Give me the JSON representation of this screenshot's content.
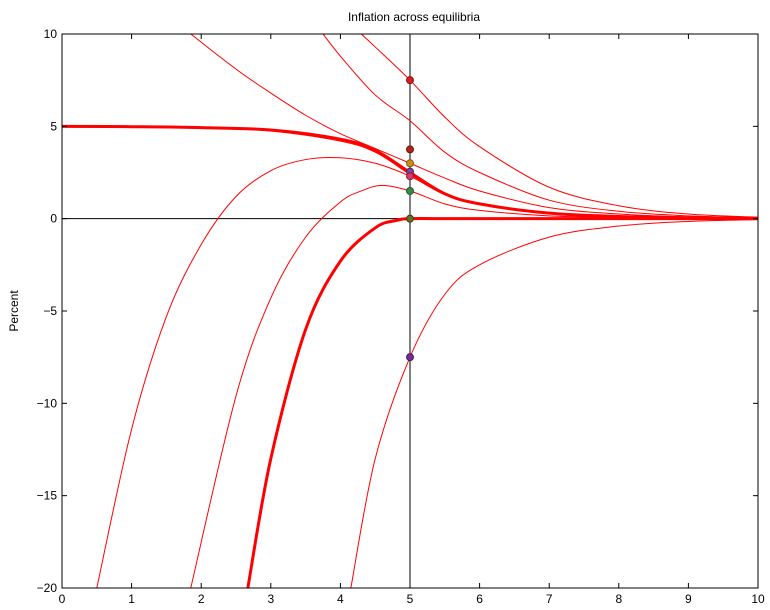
{
  "chart_data": {
    "type": "line",
    "title": "Inflation across equilibria",
    "xlabel": "",
    "ylabel": "Percent",
    "xlim": [
      0,
      10
    ],
    "ylim": [
      -20,
      10
    ],
    "xticks": [
      "0",
      "1",
      "2",
      "3",
      "4",
      "5",
      "6",
      "7",
      "8",
      "9",
      "10"
    ],
    "yticks": [
      "−20",
      "−15",
      "−10",
      "−5",
      "0",
      "5",
      "10"
    ],
    "grid": false,
    "reference_lines": {
      "x": 5,
      "y": 0
    },
    "series": [
      {
        "bold": true,
        "x": [
          0,
          1,
          2,
          3,
          4,
          4.5,
          5,
          5.5,
          6,
          7,
          8,
          9,
          10
        ],
        "y": [
          5,
          4.98,
          4.93,
          4.8,
          4.3,
          3.7,
          2.5,
          1.35,
          0.8,
          0.3,
          0.12,
          0.05,
          0.02
        ]
      },
      {
        "bold": true,
        "x": [
          2.67,
          3,
          3.5,
          4,
          4.5,
          4.8,
          5,
          5.5,
          6,
          8,
          10
        ],
        "y": [
          -20,
          -13,
          -6,
          -2.3,
          -0.5,
          -0.1,
          0,
          0,
          0,
          0,
          0
        ]
      },
      {
        "bold": false,
        "x": [
          0.5,
          1,
          1.5,
          2,
          2.5,
          3,
          3.5,
          4,
          4.5,
          5,
          5.5,
          6,
          7,
          8,
          9,
          10
        ],
        "y": [
          -20,
          -11.4,
          -5.3,
          -1.4,
          1.2,
          2.6,
          3.2,
          3.3,
          3,
          2.3,
          1.3,
          0.8,
          0.3,
          0.12,
          0.05,
          0.02
        ]
      },
      {
        "bold": false,
        "x": [
          1.85,
          2.5,
          3,
          3.5,
          4,
          4.3,
          4.6,
          5,
          5.5,
          6,
          7,
          8,
          9,
          10
        ],
        "y": [
          -20,
          -9.6,
          -4.3,
          -1,
          0.9,
          1.5,
          1.8,
          1.5,
          0.8,
          0.45,
          0.15,
          0.07,
          0.03,
          0.01
        ]
      },
      {
        "bold": false,
        "x": [
          4.15,
          4.5,
          5,
          5.5,
          6,
          7,
          8,
          9,
          10
        ],
        "y": [
          -20,
          -13,
          -7.5,
          -4.1,
          -2.5,
          -1,
          -0.4,
          -0.15,
          -0.05
        ]
      },
      {
        "bold": false,
        "x": [
          3.75,
          4,
          4.5,
          5,
          5.5,
          6,
          7,
          8,
          9,
          10
        ],
        "y": [
          10,
          8.8,
          6.7,
          5.3,
          3.6,
          2.5,
          1.0,
          0.4,
          0.15,
          0.05
        ]
      },
      {
        "bold": false,
        "x": [
          4.3,
          4.5,
          5,
          5.5,
          6,
          7,
          8,
          9,
          10
        ],
        "y": [
          10,
          9.3,
          7.5,
          5.5,
          3.9,
          1.7,
          0.7,
          0.25,
          0.08
        ]
      },
      {
        "bold": false,
        "x": [
          1.85,
          2.5,
          3,
          3.5,
          4,
          4.5,
          5,
          5.5,
          6,
          7,
          8,
          9,
          10
        ],
        "y": [
          10,
          8.1,
          6.8,
          5.6,
          4.6,
          3.8,
          3.0,
          2.2,
          1.5,
          0.6,
          0.25,
          0.1,
          0.03
        ]
      },
      {
        "bold": false,
        "x": [
          0,
          1,
          2,
          3,
          4,
          4.5,
          5,
          5.5,
          6,
          7,
          8,
          9,
          10
        ],
        "y": [
          5,
          4.98,
          4.9,
          4.75,
          4.2,
          3.6,
          2.4,
          1.3,
          0.78,
          0.28,
          0.1,
          0.04,
          0.01
        ]
      }
    ],
    "markers": [
      {
        "x": 5,
        "y": 7.5,
        "fill": "#d61f1f",
        "edge": "#8a1010"
      },
      {
        "x": 5,
        "y": 3.75,
        "fill": "#b0241c",
        "edge": "#6a1a10"
      },
      {
        "x": 5,
        "y": 3.0,
        "fill": "#d08a1a",
        "edge": "#8a5a10"
      },
      {
        "x": 5,
        "y": 2.55,
        "fill": "#7a4aa0",
        "edge": "#4a2070"
      },
      {
        "x": 5,
        "y": 2.3,
        "fill": "#d63a6a",
        "edge": "#8a1a3a"
      },
      {
        "x": 5,
        "y": 1.5,
        "fill": "#3a8a4a",
        "edge": "#1a5a2a"
      },
      {
        "x": 5,
        "y": 0,
        "fill": "#6a6a2a",
        "edge": "#3a3a10"
      },
      {
        "x": 5,
        "y": -7.5,
        "fill": "#7a2a8a",
        "edge": "#3a1a6a"
      }
    ]
  }
}
